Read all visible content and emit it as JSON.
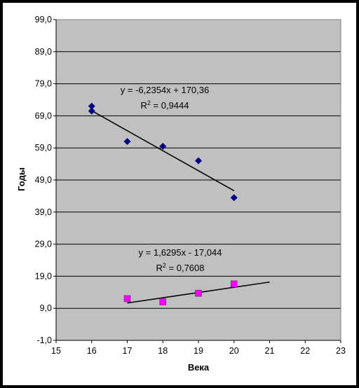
{
  "chart_data": {
    "type": "scatter",
    "xlabel": "Века",
    "ylabel": "Годы",
    "xlim": [
      15,
      23
    ],
    "ylim": [
      -1,
      99
    ],
    "x_ticks": [
      "15",
      "16",
      "17",
      "18",
      "19",
      "20",
      "21",
      "22",
      "23"
    ],
    "y_ticks": [
      "-1,0",
      "9,0",
      "19,0",
      "29,0",
      "39,0",
      "49,0",
      "59,0",
      "69,0",
      "79,0",
      "89,0",
      "99,0"
    ],
    "grid": "horizontal",
    "plot_background": "#c0c0c0",
    "series": [
      {
        "marker": "diamond",
        "color": "#000080",
        "points": [
          [
            16,
            72.0
          ],
          [
            16,
            70.5
          ],
          [
            17,
            61.0
          ],
          [
            18,
            59.5
          ],
          [
            19,
            55.0
          ],
          [
            20,
            43.5
          ]
        ],
        "trendline": {
          "slope": -6.2354,
          "intercept": 170.36,
          "x_range": [
            16,
            20
          ]
        },
        "equation": "y = -6,2354x + 170,36",
        "r2_label": "R",
        "r2_value": " = 0,9444"
      },
      {
        "marker": "square",
        "color": "#ff00ff",
        "points": [
          [
            17,
            12.0
          ],
          [
            18,
            11.0
          ],
          [
            19,
            13.7
          ],
          [
            20,
            16.6
          ]
        ],
        "trendline": {
          "slope": 1.6295,
          "intercept": -17.044,
          "x_range": [
            17,
            21
          ]
        },
        "equation": "y = 1,6295x - 17,044",
        "r2_label": "R",
        "r2_value": " = 0,7608"
      }
    ]
  }
}
